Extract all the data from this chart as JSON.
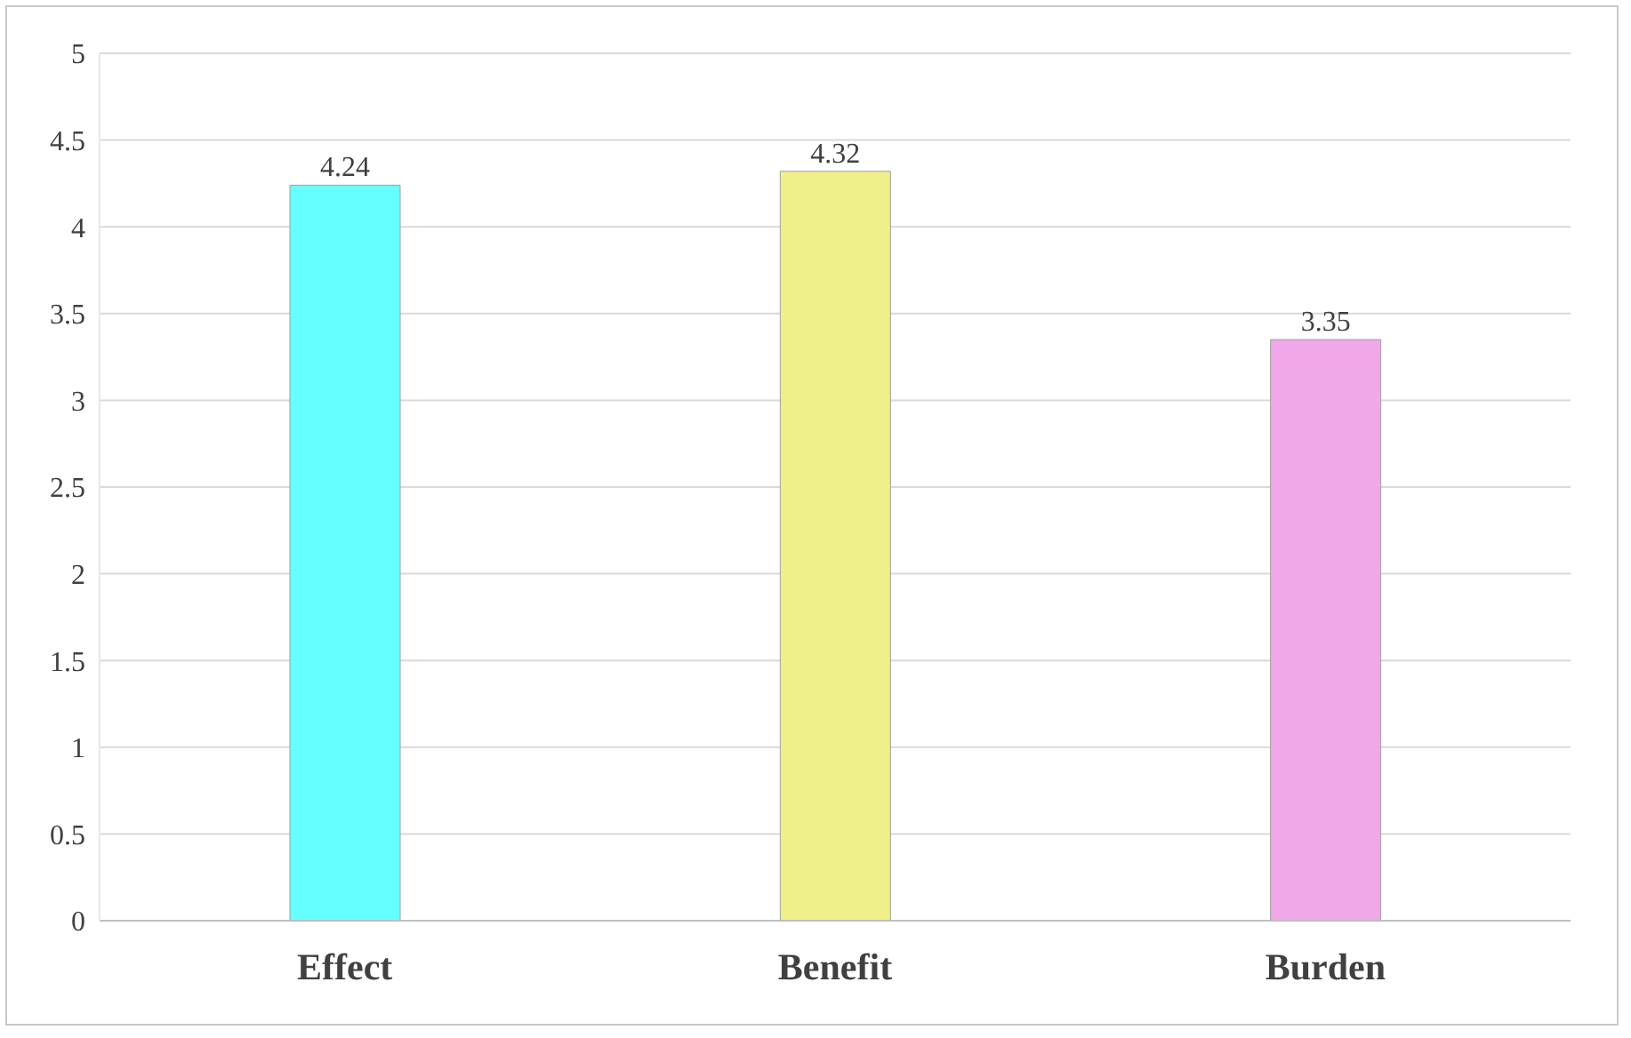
{
  "chart_data": {
    "type": "bar",
    "categories": [
      "Effect",
      "Benefit",
      "Burden"
    ],
    "values": [
      4.24,
      4.32,
      3.35
    ],
    "colors": [
      "#66ffff",
      "#f0f08a",
      "#f0a8e8"
    ],
    "ylim": [
      0,
      5
    ],
    "yticks": [
      0,
      0.5,
      1,
      1.5,
      2,
      2.5,
      3,
      3.5,
      4,
      4.5,
      5
    ],
    "grid": "y",
    "data_labels": true
  }
}
